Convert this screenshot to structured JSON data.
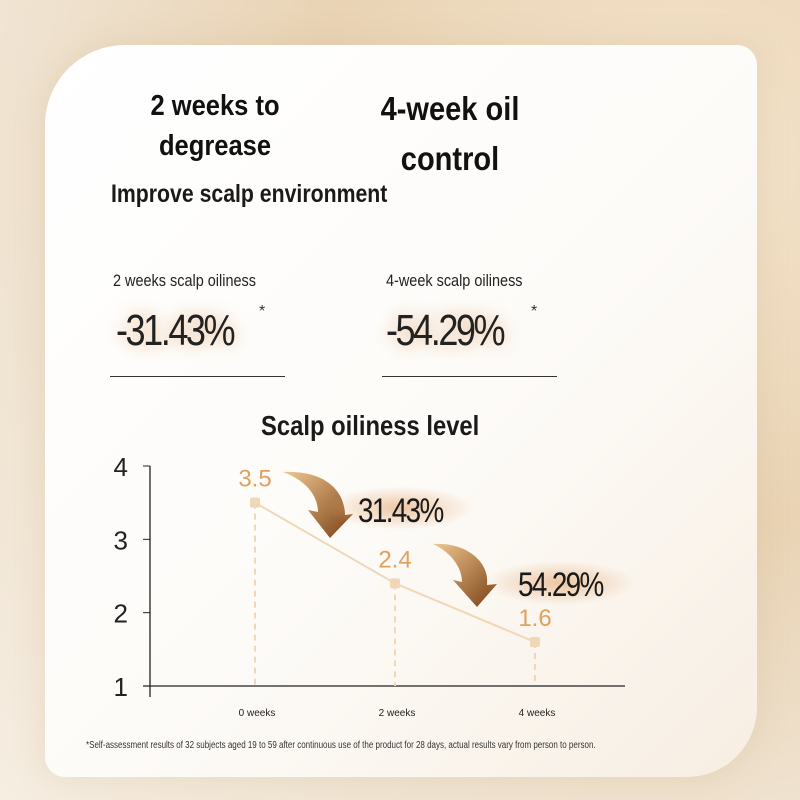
{
  "headline": {
    "left": "2 weeks to degrease",
    "right": "4-week oil control"
  },
  "subtitle": "Improve scalp environment",
  "stats": [
    {
      "label": "2 weeks scalp oiliness",
      "value": "-31.43%",
      "mark": "*"
    },
    {
      "label": "4-week scalp oiliness",
      "value": "-54.29%",
      "mark": "*"
    }
  ],
  "chart_data": {
    "type": "line",
    "title": "Scalp oiliness level",
    "categories": [
      "0 weeks",
      "2 weeks",
      "4 weeks"
    ],
    "values": [
      3.5,
      2.4,
      1.6
    ],
    "data_labels": [
      "3.5",
      "2.4",
      "1.6"
    ],
    "ylim": [
      1,
      4
    ],
    "yticks": [
      "1",
      "2",
      "3",
      "4"
    ],
    "annotations": [
      "31.43%",
      "54.29%"
    ],
    "colors": {
      "line": "#f0d7b8",
      "label": "#e0a060",
      "arrow": "#8a5020"
    }
  },
  "footnote": "*Self-assessment results of 32 subjects aged 19 to 59 after continuous use of the product for 28 days, actual results vary from person to person."
}
